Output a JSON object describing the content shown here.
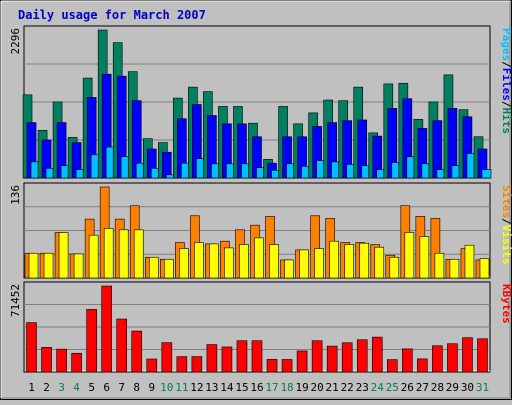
{
  "chart_data": {
    "title": "Daily usage for March 2007",
    "type": "bar",
    "x": [
      "1",
      "2",
      "3",
      "4",
      "5",
      "6",
      "7",
      "8",
      "9",
      "10",
      "11",
      "12",
      "13",
      "14",
      "15",
      "16",
      "17",
      "18",
      "19",
      "20",
      "21",
      "22",
      "23",
      "24",
      "25",
      "26",
      "27",
      "28",
      "29",
      "30",
      "31"
    ],
    "weekend_days": [
      "3",
      "4",
      "10",
      "11",
      "17",
      "18",
      "24",
      "25",
      "31"
    ],
    "colors": {
      "background": "#c0c0c0",
      "title": "#0000cc",
      "hits": "#008060",
      "files": "#0000ff",
      "pages": "#00c0ff",
      "visits": "#ff8000",
      "sites": "#ffff00",
      "kbytes": "#ff0000",
      "weekday_label": "#000000",
      "weekend_label": "#00804c"
    },
    "panels": [
      {
        "id": "hits-files-pages",
        "y_max_label": "2296",
        "ylim": [
          0,
          2296
        ],
        "legend": [
          {
            "text": "Pages",
            "color": "#00c0ff"
          },
          {
            "text": "/",
            "color": "#000000"
          },
          {
            "text": "Files",
            "color": "#0000ff"
          },
          {
            "text": "/",
            "color": "#000000"
          },
          {
            "text": "Hits",
            "color": "#008060"
          }
        ],
        "series": [
          {
            "name": "Hits",
            "color": "#008060",
            "values": [
              1290,
              740,
              1180,
              630,
              1550,
              2296,
              2100,
              1650,
              610,
              550,
              1240,
              1410,
              1340,
              1110,
              1110,
              850,
              290,
              1110,
              840,
              1010,
              1210,
              1200,
              1410,
              700,
              1460,
              1470,
              910,
              1180,
              1600,
              1060,
              640
            ]
          },
          {
            "name": "Files",
            "color": "#0000ff",
            "values": [
              860,
              590,
              860,
              550,
              1250,
              1610,
              1580,
              1200,
              450,
              400,
              920,
              1140,
              970,
              840,
              840,
              640,
              230,
              640,
              640,
              800,
              860,
              890,
              900,
              650,
              1080,
              1230,
              770,
              890,
              1080,
              950,
              450
            ]
          },
          {
            "name": "Pages",
            "color": "#00c0ff",
            "values": [
              250,
              150,
              190,
              130,
              360,
              480,
              330,
              230,
              150,
              50,
              230,
              300,
              220,
              220,
              220,
              160,
              120,
              220,
              180,
              270,
              250,
              210,
              190,
              130,
              240,
              330,
              220,
              130,
              190,
              380,
              130
            ]
          }
        ]
      },
      {
        "id": "visits-sites",
        "y_max_label": "136",
        "ylim": [
          0,
          136
        ],
        "legend": [
          {
            "text": "Sites",
            "color": "#ff8000"
          },
          {
            "text": "/",
            "color": "#000000"
          },
          {
            "text": "Visits",
            "color": "#ffff00"
          }
        ],
        "series": [
          {
            "name": "Visits",
            "color": "#ff8000",
            "values": [
              37,
              37,
              68,
              36,
              88,
              136,
              88,
              108,
              31,
              28,
              53,
              93,
              51,
              55,
              72,
              79,
              92,
              27,
              42,
              93,
              89,
              53,
              53,
              50,
              34,
              108,
              92,
              89,
              28,
              44,
              27
            ]
          },
          {
            "name": "Sites",
            "color": "#ffff00",
            "values": [
              37,
              37,
              68,
              36,
              64,
              74,
              72,
              72,
              31,
              28,
              44,
              53,
              51,
              45,
              50,
              60,
              50,
              27,
              42,
              44,
              55,
              50,
              52,
              46,
              31,
              68,
              62,
              37,
              28,
              49,
              29
            ]
          }
        ]
      },
      {
        "id": "kbytes",
        "y_max_label": "71452",
        "ylim": [
          0,
          71452
        ],
        "legend": [
          {
            "text": "KBytes",
            "color": "#ff0000"
          }
        ],
        "series": [
          {
            "name": "KBytes",
            "color": "#ff0000",
            "values": [
              41000,
              20500,
              19000,
              15600,
              52000,
              71452,
              44000,
              34000,
              10800,
              24400,
              12800,
              12800,
              22800,
              20800,
              26000,
              26000,
              10500,
              10400,
              17500,
              26000,
              21500,
              24300,
              26800,
              29000,
              10300,
              19200,
              10900,
              21800,
              23500,
              28500,
              27600
            ]
          }
        ]
      }
    ]
  }
}
